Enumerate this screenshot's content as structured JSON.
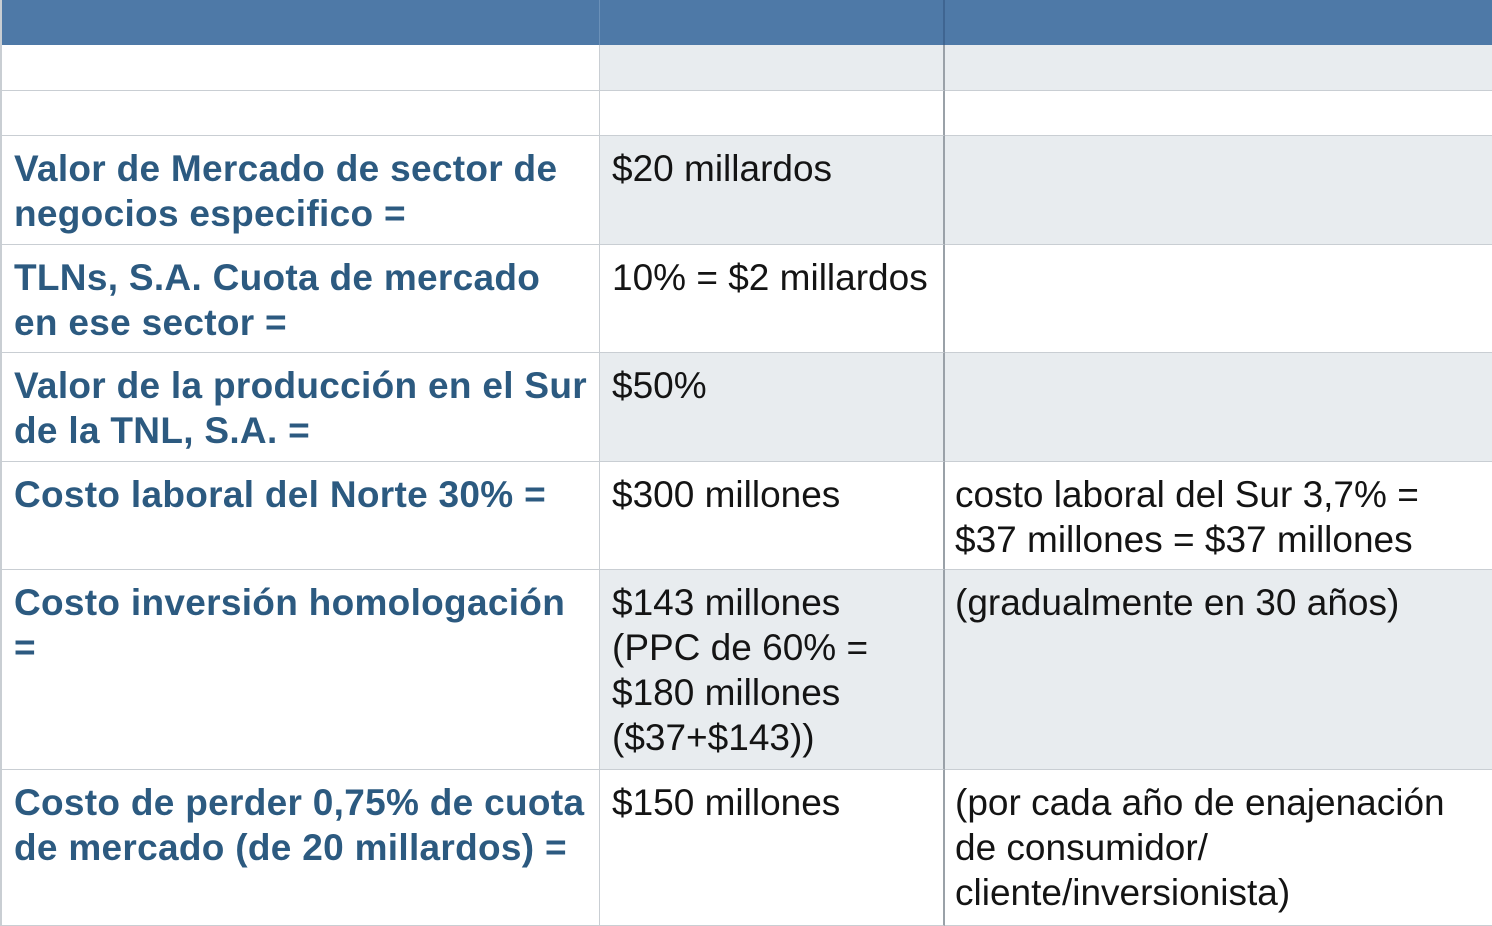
{
  "header": {
    "col1": "",
    "col2": "",
    "col3": ""
  },
  "rows": [
    {
      "label": "",
      "value": "",
      "note": ""
    },
    {
      "label": "",
      "value": "",
      "note": ""
    },
    {
      "label": "Valor de Mercado de sector de negocios especifico =",
      "value": "$20 millardos",
      "note": ""
    },
    {
      "label": "TLNs, S.A. Cuota de mercado en ese sector =",
      "value": "10% = $2 millardos",
      "note": ""
    },
    {
      "label": "Valor de la producción en el Sur de la TNL, S.A. =",
      "value": "$50%",
      "note": ""
    },
    {
      "label": "Costo laboral del Norte 30% =",
      "value": "$300 millones",
      "note": "costo laboral del Sur 3,7% = $37 millones = $37 millones"
    },
    {
      "label": "Costo inversión homologación =",
      "value": "$143 millones (PPC de 60% = $180 millones ($37+$143))",
      "note": "(gradualmente en 30 años)"
    },
    {
      "label": "Costo de perder 0,75% de cuota de mercado (de 20 millardos)  =",
      "value": "$150 millones",
      "note": "(por cada año de enajenación de consumidor/ cliente/inversionista)"
    }
  ]
}
